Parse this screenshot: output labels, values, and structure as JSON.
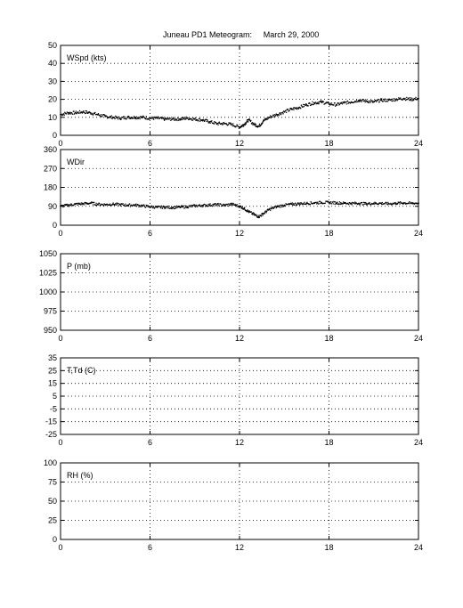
{
  "title": "Juneau PD1 Meteogram:",
  "date": "March 29, 2000",
  "chart_data": [
    {
      "type": "scatter",
      "ylabel": "WSpd (kts)",
      "xlim": [
        0,
        24
      ],
      "ylim": [
        0,
        50
      ],
      "xticks": [
        "0",
        "6",
        "12",
        "18",
        "24"
      ],
      "yticks": [
        "0",
        "10",
        "20",
        "30",
        "40",
        "50"
      ],
      "grid": true,
      "series": [
        {
          "points": [
            [
              0,
              11.5
            ],
            [
              0.5,
              12.5
            ],
            [
              1,
              12.5
            ],
            [
              1.5,
              13
            ],
            [
              2,
              12.5
            ],
            [
              2.5,
              11.5
            ],
            [
              3,
              10.5
            ],
            [
              3.5,
              10
            ],
            [
              4,
              9.5
            ],
            [
              4.5,
              10
            ],
            [
              5,
              10
            ],
            [
              5.5,
              10
            ],
            [
              6,
              9.5
            ],
            [
              6.5,
              9.5
            ],
            [
              7,
              9
            ],
            [
              7.5,
              9
            ],
            [
              8,
              9
            ],
            [
              8.5,
              9.5
            ],
            [
              9,
              9
            ],
            [
              9.5,
              8.5
            ],
            [
              10,
              7.5
            ],
            [
              10.5,
              6.5
            ],
            [
              11,
              6.5
            ],
            [
              11.5,
              6
            ],
            [
              12,
              4.5
            ],
            [
              12.3,
              6
            ],
            [
              12.6,
              8.5
            ],
            [
              13,
              6
            ],
            [
              13.3,
              5
            ],
            [
              13.6,
              8
            ],
            [
              14,
              10
            ],
            [
              14.5,
              11.5
            ],
            [
              15,
              13
            ],
            [
              15.5,
              14.5
            ],
            [
              16,
              15.5
            ],
            [
              16.5,
              17
            ],
            [
              17,
              18
            ],
            [
              17.5,
              18.5
            ],
            [
              18,
              17.5
            ],
            [
              18.5,
              17
            ],
            [
              19,
              18
            ],
            [
              19.5,
              18.5
            ],
            [
              20,
              19.5
            ],
            [
              20.5,
              19
            ],
            [
              21,
              18.5
            ],
            [
              21.5,
              19.5
            ],
            [
              22,
              19.5
            ],
            [
              22.5,
              20
            ],
            [
              23,
              20.5
            ],
            [
              23.5,
              20
            ],
            [
              24,
              20.5
            ]
          ]
        }
      ]
    },
    {
      "type": "scatter",
      "ylabel": "WDir",
      "xlim": [
        0,
        24
      ],
      "ylim": [
        0,
        360
      ],
      "xticks": [
        "0",
        "6",
        "12",
        "18",
        "24"
      ],
      "yticks": [
        "0",
        "90",
        "180",
        "270",
        "360"
      ],
      "grid": true,
      "series": [
        {
          "points": [
            [
              0,
              90
            ],
            [
              0.5,
              95
            ],
            [
              1,
              100
            ],
            [
              1.5,
              102
            ],
            [
              2,
              105
            ],
            [
              2.5,
              100
            ],
            [
              3,
              98
            ],
            [
              3.5,
              100
            ],
            [
              4,
              98
            ],
            [
              4.5,
              95
            ],
            [
              5,
              96
            ],
            [
              5.5,
              92
            ],
            [
              6,
              88
            ],
            [
              6.5,
              85
            ],
            [
              7,
              86
            ],
            [
              7.5,
              84
            ],
            [
              8,
              86
            ],
            [
              8.5,
              88
            ],
            [
              9,
              92
            ],
            [
              9.5,
              94
            ],
            [
              10,
              96
            ],
            [
              10.5,
              98
            ],
            [
              11,
              95
            ],
            [
              11.5,
              100
            ],
            [
              12,
              90
            ],
            [
              12.3,
              80
            ],
            [
              12.6,
              65
            ],
            [
              13,
              50
            ],
            [
              13.3,
              40
            ],
            [
              13.6,
              55
            ],
            [
              14,
              75
            ],
            [
              14.5,
              88
            ],
            [
              15,
              95
            ],
            [
              15.5,
              100
            ],
            [
              16,
              102
            ],
            [
              16.5,
              104
            ],
            [
              17,
              106
            ],
            [
              17.5,
              108
            ],
            [
              18,
              108
            ],
            [
              18.5,
              106
            ],
            [
              19,
              105
            ],
            [
              19.5,
              104
            ],
            [
              20,
              104
            ],
            [
              20.5,
              102
            ],
            [
              21,
              104
            ],
            [
              21.5,
              104
            ],
            [
              22,
              102
            ],
            [
              22.5,
              104
            ],
            [
              23,
              106
            ],
            [
              23.5,
              104
            ],
            [
              24,
              105
            ]
          ]
        }
      ]
    },
    {
      "type": "scatter",
      "ylabel": "P (mb)",
      "xlim": [
        0,
        24
      ],
      "ylim": [
        950,
        1050
      ],
      "xticks": [
        "0",
        "6",
        "12",
        "18",
        "24"
      ],
      "yticks": [
        "950",
        "975",
        "1000",
        "1025",
        "1050"
      ],
      "grid": true,
      "series": []
    },
    {
      "type": "scatter",
      "ylabel": "T,Td (C)",
      "xlim": [
        0,
        24
      ],
      "ylim": [
        -25,
        35
      ],
      "xticks": [
        "0",
        "6",
        "12",
        "18",
        "24"
      ],
      "yticks": [
        "-25",
        "-15",
        "-5",
        "5",
        "15",
        "25",
        "35"
      ],
      "grid": true,
      "series": []
    },
    {
      "type": "scatter",
      "ylabel": "RH (%)",
      "xlim": [
        0,
        24
      ],
      "ylim": [
        0,
        100
      ],
      "xticks": [
        "0",
        "6",
        "12",
        "18",
        "24"
      ],
      "yticks": [
        "0",
        "25",
        "50",
        "75",
        "100"
      ],
      "grid": true,
      "series": []
    }
  ]
}
